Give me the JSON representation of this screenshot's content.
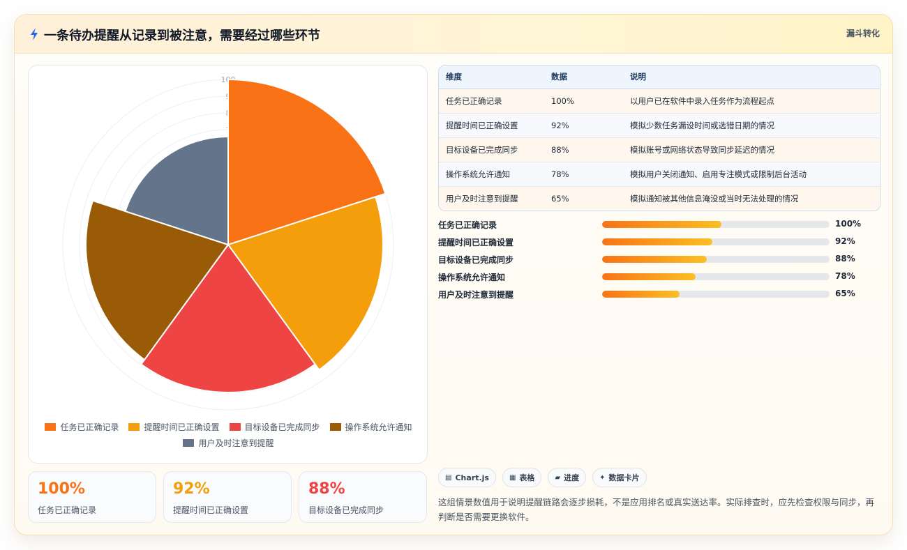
{
  "header": {
    "title": "一条待办提醒从记录到被注意，需要经过哪些环节",
    "tag": "漏斗转化",
    "accent": "#2563eb"
  },
  "chart_data": {
    "type": "polarArea",
    "categories": [
      "任务已正确记录",
      "提醒时间已正确设置",
      "目标设备已完成同步",
      "操作系统允许通知",
      "用户及时注意到提醒"
    ],
    "values": [
      100,
      92,
      88,
      78,
      65
    ],
    "colors": [
      "#f97316",
      "#f59e0b",
      "#ef4444",
      "#9a5b07",
      "#64748b"
    ],
    "radial_ticks": [
      "100",
      "9",
      "8",
      "7"
    ],
    "r_range": [
      0,
      100
    ],
    "legend": "bottom"
  },
  "stats": [
    {
      "value": "100%",
      "label": "任务已正确记录",
      "color": "#f97316"
    },
    {
      "value": "92%",
      "label": "提醒时间已正确设置",
      "color": "#f59e0b"
    },
    {
      "value": "88%",
      "label": "目标设备已完成同步",
      "color": "#ef4444"
    }
  ],
  "table": {
    "headers": [
      "维度",
      "数据",
      "说明"
    ],
    "rows": [
      [
        "任务已正确记录",
        "100%",
        "以用户已在软件中录入任务作为流程起点"
      ],
      [
        "提醒时间已正确设置",
        "92%",
        "模拟少数任务漏设时间或选错日期的情况"
      ],
      [
        "目标设备已完成同步",
        "88%",
        "模拟账号或网络状态导致同步延迟的情况"
      ],
      [
        "操作系统允许通知",
        "78%",
        "模拟用户关闭通知、启用专注模式或限制后台活动"
      ],
      [
        "用户及时注意到提醒",
        "65%",
        "模拟通知被其他信息淹没或当时无法处理的情况"
      ]
    ]
  },
  "progress": [
    {
      "label": "任务已正确记录",
      "value_text": "100%",
      "fill_pct": 52.5
    },
    {
      "label": "提醒时间已正确设置",
      "value_text": "92%",
      "fill_pct": 48.5
    },
    {
      "label": "目标设备已完成同步",
      "value_text": "88%",
      "fill_pct": 46
    },
    {
      "label": "操作系统允许通知",
      "value_text": "78%",
      "fill_pct": 41
    },
    {
      "label": "用户及时注意到提醒",
      "value_text": "65%",
      "fill_pct": 34
    }
  ],
  "chips": [
    {
      "icon": "▤",
      "label": "Chart.js"
    },
    {
      "icon": "▦",
      "label": "表格"
    },
    {
      "icon": "▰",
      "label": "进度"
    },
    {
      "icon": "✦",
      "label": "数据卡片"
    }
  ],
  "note": "这组情景数值用于说明提醒链路会逐步损耗，不是应用排名或真实送达率。实际排查时，应先检查权限与同步，再判断是否需要更换软件。"
}
